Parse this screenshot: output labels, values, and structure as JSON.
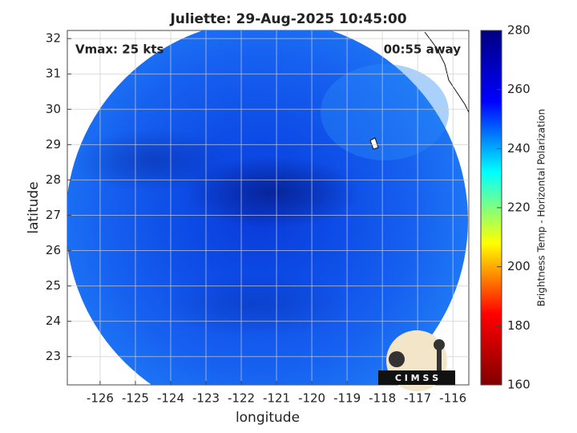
{
  "chart_data": {
    "type": "image",
    "title": "Juliette: 29-Aug-2025 10:45:00",
    "annotations": [
      "Vmax: 25 kts",
      "00:55 away"
    ],
    "xlabel": "longitude",
    "ylabel": "latitude",
    "xlim": [
      -126.93,
      -115.55
    ],
    "xticks": [
      -126,
      -125,
      -124,
      -123,
      -122,
      -121,
      -120,
      -119,
      -118,
      -117,
      -116
    ],
    "ylim": [
      22.2,
      32.23
    ],
    "yticks": [
      23,
      24,
      25,
      26,
      27,
      28,
      29,
      30,
      31,
      32
    ],
    "grid": true,
    "colorbar": {
      "label": "Brightness Temp - Horizontal Polarization",
      "lim": [
        160,
        280
      ],
      "ticks": [
        160,
        180,
        200,
        220,
        240,
        260,
        280
      ],
      "colors": [
        "#800000",
        "#ff0000",
        "#ffff00",
        "#00ffff",
        "#0000ff",
        "#000080"
      ]
    },
    "logo": "C I M S S"
  }
}
